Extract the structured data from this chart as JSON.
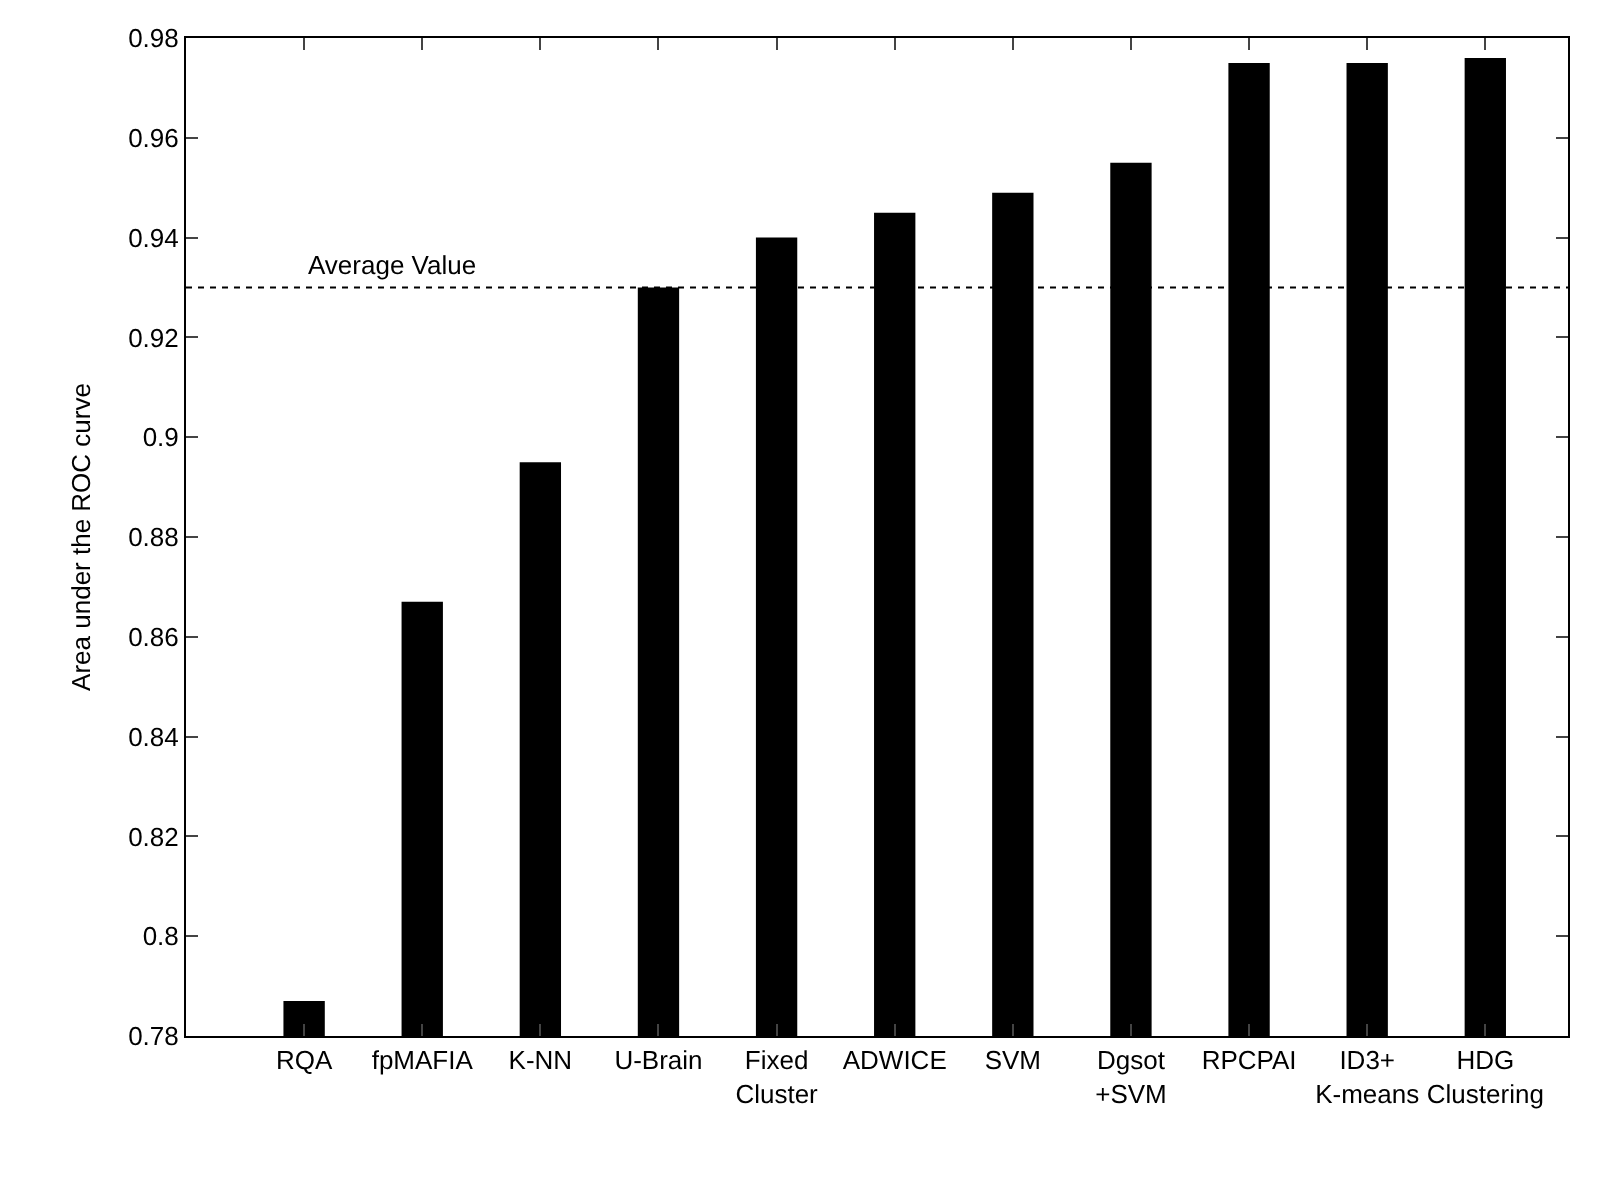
{
  "chart_data": {
    "type": "bar",
    "ylabel": "Area under the ROC curve",
    "categories": [
      "RQA",
      "fpMAFIA",
      "K-NN",
      "U-Brain",
      "Fixed\nCluster",
      "ADWICE",
      "SVM",
      "Dgsot\n+SVM",
      "RPCPAI",
      "ID3+\nK-means",
      "HDG\nClustering"
    ],
    "values": [
      0.787,
      0.867,
      0.895,
      0.93,
      0.94,
      0.945,
      0.949,
      0.955,
      0.975,
      0.975,
      0.976
    ],
    "color": "#000000",
    "ylim": [
      0.78,
      0.98
    ],
    "yticks": [
      0.78,
      0.8,
      0.82,
      0.84,
      0.86,
      0.88,
      0.9,
      0.92,
      0.94,
      0.96,
      0.98
    ],
    "ref_lines": [
      {
        "axis": "y",
        "value": 0.93,
        "label": "Average Value",
        "line_style": "dotted",
        "color": "#000000"
      }
    ],
    "relative": false
  }
}
